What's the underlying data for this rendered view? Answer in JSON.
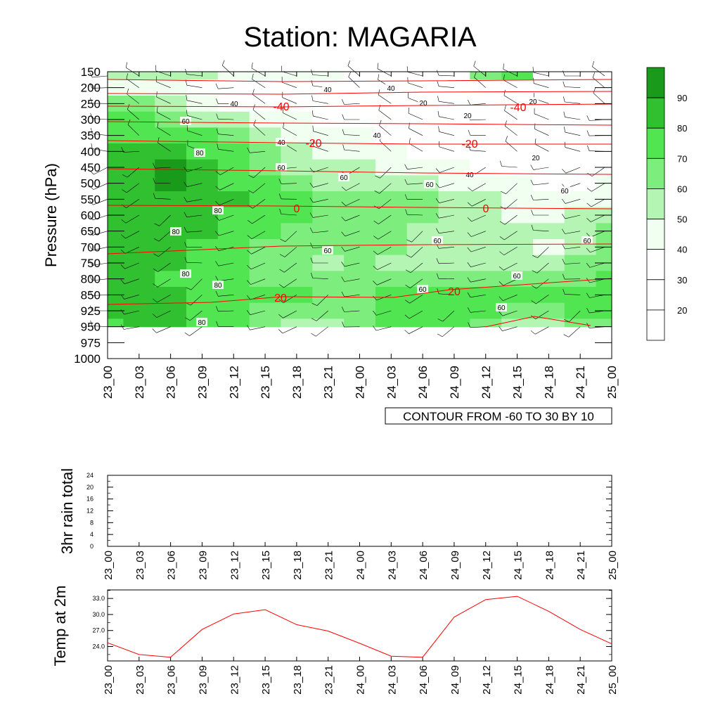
{
  "title": "Station: MAGARIA",
  "time_labels": [
    "23_00",
    "23_03",
    "23_06",
    "23_09",
    "23_12",
    "23_15",
    "23_18",
    "23_21",
    "24_00",
    "24_03",
    "24_06",
    "24_09",
    "24_12",
    "24_15",
    "24_18",
    "24_21",
    "25_00"
  ],
  "contour_info": "CONTOUR FROM -60 TO 30 BY 10",
  "colors": {
    "temp_line": "#ff0000",
    "green_levels": [
      "#ffffff",
      "#ffffff",
      "#ffffff",
      "#f0fff0",
      "#b4f5b4",
      "#7ded7d",
      "#52e552",
      "#30c030",
      "#1a9a1a"
    ]
  },
  "chart_data": [
    {
      "type": "heatmap",
      "name": "humidity-cross-section",
      "title": "Station: MAGARIA",
      "ylabel": "Pressure (hPa)",
      "xlabel": "",
      "y_ticks": [
        "150",
        "200",
        "250",
        "300",
        "350",
        "400",
        "450",
        "500",
        "550",
        "600",
        "650",
        "700",
        "750",
        "800",
        "850",
        "925",
        "950",
        "975",
        "1000"
      ],
      "x_ticks": [
        "23_00",
        "23_03",
        "23_06",
        "23_09",
        "23_12",
        "23_15",
        "23_18",
        "23_21",
        "24_00",
        "24_03",
        "24_06",
        "24_09",
        "24_12",
        "24_15",
        "24_18",
        "24_21",
        "25_00"
      ],
      "x": [
        0,
        3,
        6,
        9,
        12,
        15,
        18,
        21,
        24,
        27,
        30,
        33,
        36,
        39,
        42,
        45,
        48
      ],
      "y_levels": [
        "150",
        "200",
        "250",
        "300",
        "350",
        "400",
        "450",
        "500",
        "550",
        "600",
        "650",
        "700",
        "750",
        "800",
        "850",
        "925",
        "950"
      ],
      "rh_values": [
        [
          55,
          55,
          55,
          55,
          45,
          40,
          40,
          40,
          35,
          35,
          35,
          35,
          60,
          70,
          30,
          30,
          30
        ],
        [
          45,
          40,
          40,
          30,
          30,
          30,
          30,
          30,
          35,
          35,
          30,
          30,
          30,
          30,
          30,
          30,
          30
        ],
        [
          65,
          60,
          55,
          45,
          35,
          35,
          30,
          25,
          20,
          20,
          20,
          25,
          25,
          20,
          20,
          20,
          20
        ],
        [
          70,
          70,
          65,
          55,
          50,
          45,
          40,
          35,
          30,
          30,
          25,
          25,
          25,
          20,
          20,
          20,
          20
        ],
        [
          75,
          75,
          75,
          70,
          60,
          50,
          45,
          40,
          40,
          35,
          30,
          30,
          30,
          25,
          20,
          25,
          25
        ],
        [
          80,
          85,
          80,
          75,
          70,
          60,
          50,
          45,
          45,
          40,
          35,
          35,
          30,
          25,
          25,
          25,
          25
        ],
        [
          85,
          88,
          92,
          82,
          75,
          65,
          55,
          50,
          50,
          45,
          45,
          40,
          35,
          35,
          30,
          30,
          35
        ],
        [
          85,
          88,
          95,
          85,
          78,
          70,
          62,
          58,
          55,
          55,
          50,
          45,
          40,
          40,
          35,
          35,
          40
        ],
        [
          85,
          85,
          85,
          82,
          80,
          75,
          70,
          68,
          65,
          65,
          60,
          55,
          50,
          45,
          42,
          42,
          45
        ],
        [
          85,
          82,
          82,
          80,
          78,
          72,
          70,
          68,
          68,
          65,
          60,
          55,
          50,
          45,
          45,
          50,
          55
        ],
        [
          82,
          82,
          80,
          80,
          75,
          70,
          68,
          65,
          62,
          60,
          58,
          55,
          52,
          50,
          50,
          55,
          62
        ],
        [
          85,
          82,
          80,
          78,
          72,
          68,
          65,
          60,
          62,
          60,
          55,
          58,
          55,
          50,
          45,
          55,
          65
        ],
        [
          85,
          85,
          82,
          78,
          70,
          68,
          60,
          55,
          62,
          58,
          52,
          55,
          55,
          55,
          55,
          60,
          68
        ],
        [
          85,
          85,
          78,
          75,
          70,
          68,
          65,
          60,
          65,
          65,
          62,
          60,
          62,
          65,
          65,
          68,
          70
        ],
        [
          85,
          85,
          80,
          75,
          70,
          72,
          70,
          68,
          68,
          72,
          70,
          70,
          72,
          70,
          70,
          72,
          72
        ],
        [
          82,
          82,
          80,
          75,
          70,
          68,
          65,
          65,
          68,
          70,
          72,
          72,
          70,
          68,
          68,
          70,
          72
        ],
        [
          78,
          80,
          80,
          75,
          70,
          62,
          55,
          55,
          60,
          70,
          70,
          70,
          60,
          55,
          55,
          60,
          60
        ]
      ],
      "contour_labels": [
        "40",
        "40",
        "40",
        "40",
        "20",
        "20",
        "20",
        "20",
        "40",
        "40",
        "60",
        "60",
        "60",
        "60",
        "60",
        "60",
        "60",
        "60",
        "60",
        "60",
        "60",
        "80",
        "80",
        "80",
        "80",
        "80",
        "80"
      ],
      "temperature_isotherms": [
        -40,
        -40,
        -20,
        -20,
        0,
        0,
        20,
        20
      ],
      "colorbar_levels": [
        "90",
        "80",
        "70",
        "60",
        "50",
        "40",
        "30",
        "20"
      ],
      "info": "CONTOUR FROM -60 TO 30 BY 10"
    },
    {
      "type": "line",
      "name": "3hr-rain-total",
      "ylabel": "3hr rain total",
      "x": [
        "23_00",
        "23_03",
        "23_06",
        "23_09",
        "23_12",
        "23_15",
        "23_18",
        "23_21",
        "24_00",
        "24_03",
        "24_06",
        "24_09",
        "24_12",
        "24_15",
        "24_18",
        "24_21",
        "25_00"
      ],
      "values": [
        0,
        0,
        0,
        0,
        0,
        0,
        0,
        0,
        0,
        0,
        0,
        0,
        0,
        0,
        0,
        0,
        0
      ],
      "ylim": [
        0,
        24
      ],
      "y_ticks": [
        "0",
        "4",
        "8",
        "12",
        "16",
        "20",
        "24"
      ]
    },
    {
      "type": "line",
      "name": "temp-at-2m",
      "ylabel": "Temp at 2m",
      "x": [
        "23_00",
        "23_03",
        "23_06",
        "23_09",
        "23_12",
        "23_15",
        "23_18",
        "23_21",
        "24_00",
        "24_03",
        "24_06",
        "24_09",
        "24_12",
        "24_15",
        "24_18",
        "24_21",
        "25_00"
      ],
      "values": [
        24.7,
        22.5,
        22.0,
        27.2,
        30.1,
        30.9,
        28.1,
        26.9,
        24.6,
        22.2,
        22.0,
        29.5,
        32.8,
        33.4,
        30.6,
        27.2,
        24.5
      ],
      "ylim": [
        21.3,
        34.6
      ],
      "y_ticks": [
        "24.0",
        "27.0",
        "30.0",
        "33.0"
      ],
      "line_color": "#ff0000"
    }
  ]
}
